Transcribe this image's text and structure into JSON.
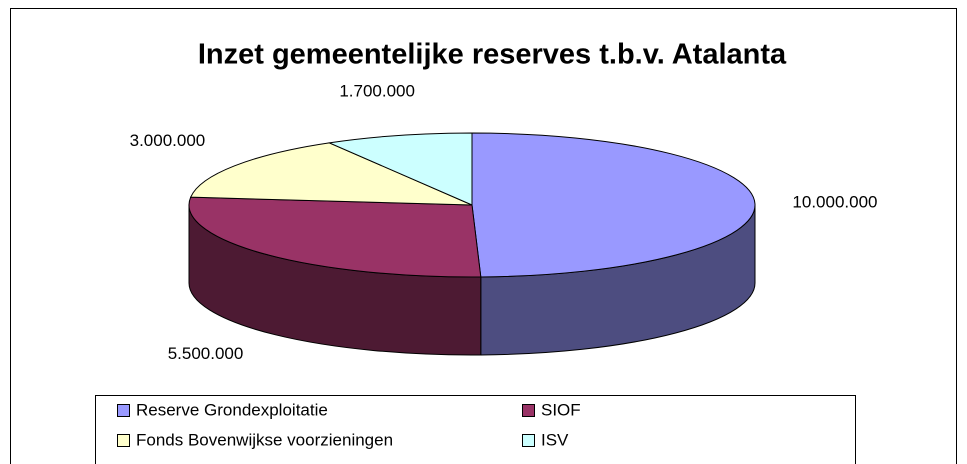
{
  "chart_data": {
    "type": "pie",
    "title": "Inzet gemeentelijke reserves t.b.v. Atalanta",
    "categories": [
      "Reserve Grondexploitatie",
      "SIOF",
      "Fonds Bovenwijkse voorzieningen",
      "ISV"
    ],
    "values": [
      10000000,
      5500000,
      3000000,
      1700000
    ],
    "value_labels": [
      "10.000.000",
      "5.500.000",
      "3.000.000",
      "1.700.000"
    ],
    "colors": [
      "#9999ff",
      "#993366",
      "#ffffcc",
      "#ccffff"
    ],
    "legend": "bottom"
  }
}
